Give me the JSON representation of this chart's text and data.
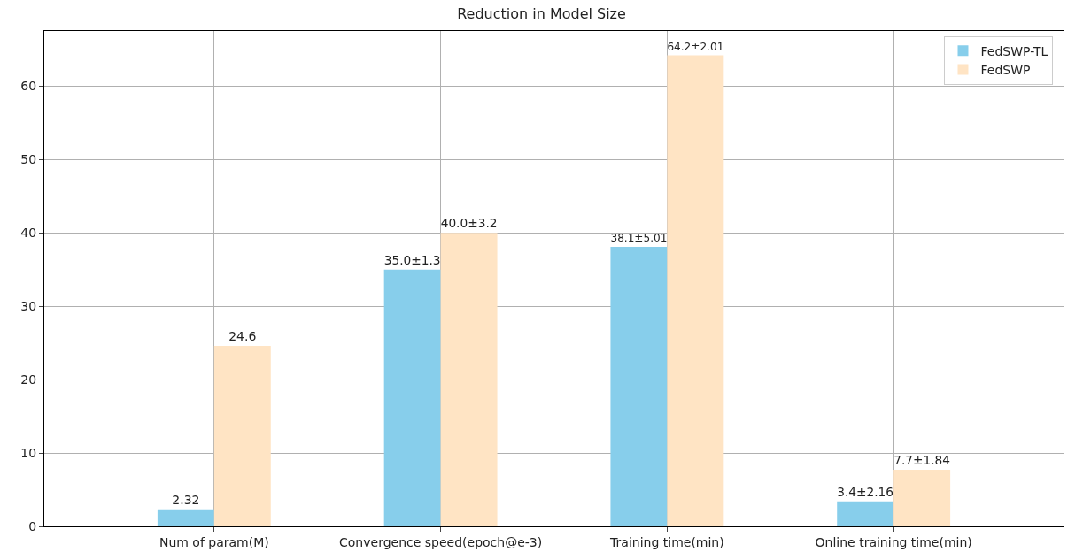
{
  "chart_data": {
    "type": "bar",
    "title": "Reduction in Model Size",
    "categories": [
      "Num of param(M)",
      "Convergence speed(epoch@e-3)",
      "Training time(min)",
      "Online training time(min)"
    ],
    "series": [
      {
        "name": "FedSWP-TL",
        "color": "#87ceeb",
        "values": [
          2.32,
          35.0,
          38.1,
          3.4
        ],
        "value_labels": [
          "2.32",
          "35.0±1.3",
          "38.1±5.01",
          "3.4±2.16"
        ]
      },
      {
        "name": "FedSWP",
        "color": "#ffe4c4",
        "values": [
          24.6,
          40.0,
          64.2,
          7.7
        ],
        "value_labels": [
          "24.6",
          "40.0±3.2",
          "64.2±2.01",
          "7.7±1.84"
        ]
      }
    ],
    "ylim": [
      0,
      67.5
    ],
    "yticks": [
      0,
      10,
      20,
      30,
      40,
      50,
      60
    ],
    "grid": true,
    "legend": "top right"
  }
}
